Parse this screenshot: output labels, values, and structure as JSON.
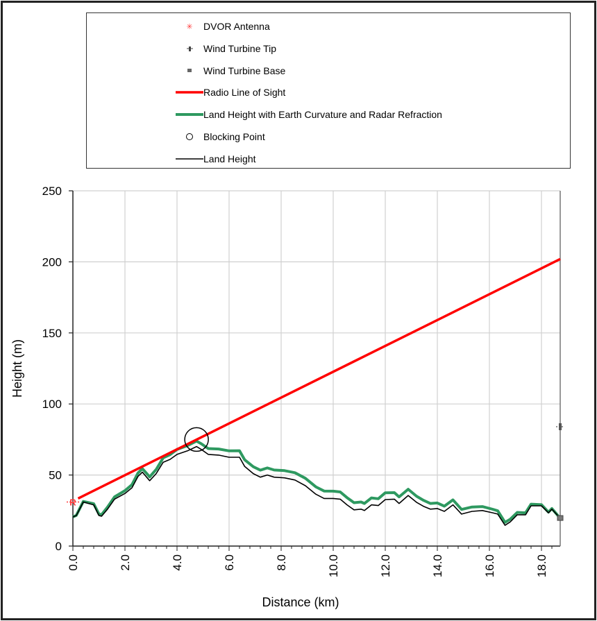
{
  "chart_data": {
    "type": "line",
    "xlabel": "Distance (km)",
    "ylabel": "Height (m)",
    "xlim": [
      0,
      18.72
    ],
    "ylim": [
      0,
      250
    ],
    "x_ticks": [
      "0.0",
      "2.0",
      "4.0",
      "6.0",
      "8.0",
      "10.0",
      "12.0",
      "14.0",
      "16.0",
      "18.0"
    ],
    "x_tick_values": [
      0,
      2,
      4,
      6,
      8,
      10,
      12,
      14,
      16,
      18
    ],
    "y_ticks": [
      "0",
      "50",
      "100",
      "150",
      "200",
      "250"
    ],
    "y_tick_values": [
      0,
      50,
      100,
      150,
      200,
      250
    ],
    "grid": true,
    "legend_position": "top",
    "legend": [
      {
        "label": "DVOR Antenna",
        "kind": "marker-star",
        "color": "#ff3b3b"
      },
      {
        "label": "Wind Turbine Tip",
        "kind": "marker-plus",
        "color": "#444444"
      },
      {
        "label": "Wind Turbine Base",
        "kind": "marker-square",
        "color": "#666666"
      },
      {
        "label": "Radio Line of Sight",
        "kind": "line",
        "color": "#ff0000"
      },
      {
        "label": "Land Height with Earth Curvature and Radar Refraction",
        "kind": "line-thick",
        "color": "#2e9960"
      },
      {
        "label": "Blocking Point",
        "kind": "circle",
        "color": "#000000"
      },
      {
        "label": "Land Height",
        "kind": "line-thin",
        "color": "#000000"
      }
    ],
    "x": [
      0,
      0.13,
      0.4,
      0.6,
      0.8,
      1.0,
      1.1,
      1.33,
      1.6,
      2.0,
      2.27,
      2.5,
      2.67,
      2.9,
      2.95,
      3.2,
      3.47,
      3.73,
      4.0,
      4.4,
      4.75,
      4.93,
      5.2,
      5.6,
      6.0,
      6.4,
      6.6,
      6.93,
      7.2,
      7.47,
      7.73,
      8.13,
      8.53,
      8.93,
      9.33,
      9.65,
      10.0,
      10.27,
      10.53,
      10.8,
      11.07,
      11.2,
      11.47,
      11.73,
      12.0,
      12.35,
      12.53,
      12.88,
      13.2,
      13.47,
      13.73,
      14.0,
      14.27,
      14.6,
      14.93,
      15.33,
      15.73,
      16.13,
      16.32,
      16.6,
      16.8,
      17.07,
      17.39,
      17.6,
      18.0,
      18.27,
      18.4,
      18.6,
      18.72
    ],
    "series": [
      {
        "name": "Land Height",
        "values": [
          20.5,
          21.5,
          31,
          30,
          29,
          21.5,
          21,
          26,
          33,
          37,
          41,
          49,
          52,
          47,
          46,
          51,
          59,
          61,
          64.5,
          67,
          70,
          68,
          64.5,
          64,
          62.5,
          62.5,
          56,
          51,
          48.5,
          50,
          48.5,
          48,
          46.5,
          42.5,
          36.5,
          33.5,
          33.5,
          33,
          29,
          25.5,
          26,
          25,
          29,
          28.5,
          32.7,
          33,
          30,
          35.6,
          30.8,
          28,
          26,
          26.4,
          24.4,
          29,
          22.5,
          24.4,
          25,
          23.4,
          22.5,
          14.6,
          17,
          22,
          22,
          28.3,
          28.3,
          23.4,
          26,
          22,
          19.5
        ]
      },
      {
        "name": "Land Height with Earth Curvature and Radar Refraction",
        "values": [
          20.5,
          21.6,
          31.4,
          30.6,
          29.8,
          22.5,
          22.1,
          27.4,
          34.6,
          39.0,
          43.2,
          51.4,
          54.5,
          49.7,
          48.7,
          53.9,
          62.1,
          64.3,
          68.0,
          70.7,
          73.9,
          72.0,
          68.6,
          68.3,
          67.0,
          67.1,
          60.7,
          55.8,
          53.4,
          55.0,
          53.5,
          53.1,
          51.6,
          47.7,
          41.7,
          38.7,
          38.6,
          38.1,
          34.1,
          30.5,
          31.0,
          30.0,
          33.9,
          33.3,
          37.5,
          37.6,
          34.6,
          40.0,
          35.1,
          32.2,
          30.0,
          30.3,
          28.1,
          32.5,
          25.8,
          27.5,
          27.8,
          25.9,
          24.8,
          16.7,
          18.9,
          23.7,
          23.4,
          29.5,
          29.1,
          23.9,
          26.4,
          22.1,
          19.5
        ]
      }
    ],
    "line_of_sight": {
      "x": [
        0.2,
        18.72
      ],
      "y": [
        33.5,
        202
      ]
    },
    "dvor_antenna": {
      "x": 0,
      "y": 31,
      "label": "R"
    },
    "blocking_point": {
      "x": 4.75,
      "y": 75
    },
    "wind_turbine": {
      "x": 18.72,
      "tip": 84,
      "base": 19.5
    }
  }
}
